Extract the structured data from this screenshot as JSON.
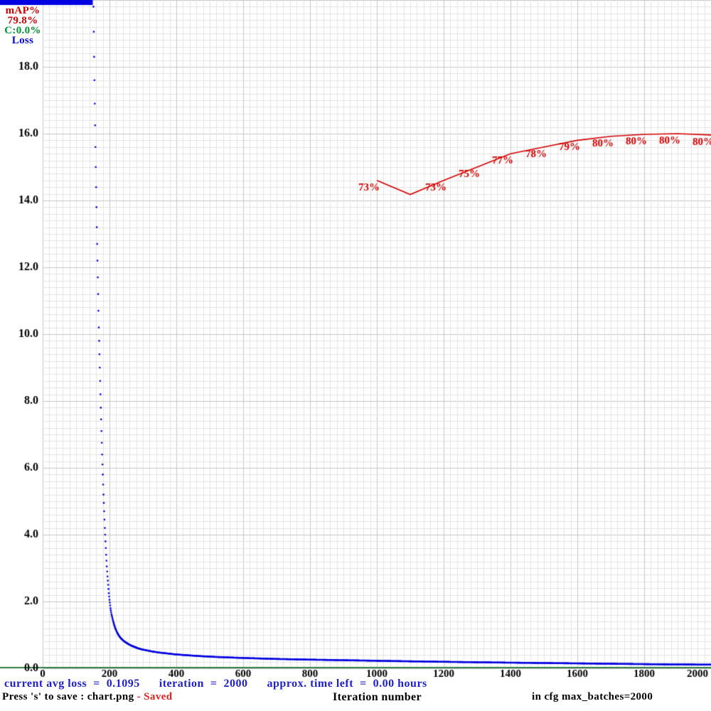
{
  "legend": {
    "map_label": "mAP%",
    "map_value": "79.8%",
    "contrastive_value": "C:0.0%",
    "loss_label": "Loss"
  },
  "footer": {
    "status_line": "current avg loss  =  0.1095      iteration  =  2000      approx. time left  =  0.00 hours",
    "save_hint": "Press 's' to save : chart.png ",
    "saved_flag": "- Saved",
    "x_axis_title": "Iteration number",
    "cfg_note": "in cfg max_batches=2000"
  },
  "colors": {
    "loss": "#0000e0",
    "map": "#d40000",
    "contrastive": "#009432",
    "baseline": "#2f7d46",
    "status_text": "#2121cc",
    "saved_text": "#e02020",
    "grid_minor": "#e3e3e3",
    "grid_major": "#c6c6c6",
    "axis_text": "#000000"
  },
  "chart_data": {
    "type": "line",
    "xlabel": "Iteration number",
    "x_min": 0,
    "x_max": 2000,
    "x_ticks": [
      0,
      200,
      400,
      600,
      800,
      1000,
      1200,
      1400,
      1600,
      1800,
      2000
    ],
    "loss_axis": {
      "min": 0,
      "max": 20,
      "tick_step": 2,
      "tick_format_decimals": 1
    },
    "map_axis": {
      "min": 0,
      "max": 100
    },
    "grid": {
      "divisions": 100,
      "major_every": 10
    },
    "current": {
      "avg_loss": 0.1095,
      "iteration": 2000,
      "map_percent": 79.8,
      "time_left_hours": 0.0,
      "max_batches": 2000
    },
    "loss_clipped_until_iteration": 150,
    "series": [
      {
        "name": "Loss",
        "style": "dots",
        "axis": "loss",
        "points": [
          [
            150,
            21
          ],
          [
            152,
            19.8
          ],
          [
            154,
            18.3
          ],
          [
            156,
            16.9
          ],
          [
            158,
            15.6
          ],
          [
            160,
            14.4
          ],
          [
            162,
            13.2
          ],
          [
            164,
            12.2
          ],
          [
            166,
            11.2
          ],
          [
            168,
            10.2
          ],
          [
            170,
            9.4
          ],
          [
            172,
            8.6
          ],
          [
            174,
            7.8
          ],
          [
            176,
            7.1
          ],
          [
            178,
            6.4
          ],
          [
            180,
            5.8
          ],
          [
            182,
            5.2
          ],
          [
            184,
            4.7
          ],
          [
            186,
            4.2
          ],
          [
            188,
            3.8
          ],
          [
            190,
            3.4
          ],
          [
            192,
            3.05
          ],
          [
            194,
            2.75
          ],
          [
            196,
            2.5
          ],
          [
            198,
            2.25
          ],
          [
            200,
            2.05
          ],
          [
            203,
            1.8
          ],
          [
            206,
            1.62
          ],
          [
            210,
            1.45
          ],
          [
            214,
            1.3
          ],
          [
            218,
            1.18
          ],
          [
            223,
            1.07
          ],
          [
            228,
            0.98
          ],
          [
            234,
            0.9
          ],
          [
            240,
            0.84
          ],
          [
            248,
            0.78
          ],
          [
            256,
            0.73
          ],
          [
            265,
            0.68
          ],
          [
            275,
            0.64
          ],
          [
            285,
            0.6
          ],
          [
            300,
            0.56
          ],
          [
            315,
            0.53
          ],
          [
            330,
            0.5
          ],
          [
            350,
            0.47
          ],
          [
            370,
            0.45
          ],
          [
            395,
            0.42
          ],
          [
            420,
            0.4
          ],
          [
            450,
            0.38
          ],
          [
            480,
            0.36
          ],
          [
            520,
            0.34
          ],
          [
            560,
            0.325
          ],
          [
            600,
            0.31
          ],
          [
            650,
            0.295
          ],
          [
            700,
            0.28
          ],
          [
            750,
            0.27
          ],
          [
            800,
            0.26
          ],
          [
            860,
            0.25
          ],
          [
            920,
            0.24
          ],
          [
            980,
            0.23
          ],
          [
            1040,
            0.22
          ],
          [
            1100,
            0.21
          ],
          [
            1170,
            0.2
          ],
          [
            1240,
            0.19
          ],
          [
            1320,
            0.18
          ],
          [
            1400,
            0.17
          ],
          [
            1490,
            0.16
          ],
          [
            1580,
            0.15
          ],
          [
            1670,
            0.14
          ],
          [
            1760,
            0.13
          ],
          [
            1850,
            0.12
          ],
          [
            1930,
            0.115
          ],
          [
            2000,
            0.11
          ]
        ]
      },
      {
        "name": "mAP%",
        "style": "line",
        "axis": "map",
        "points": [
          [
            1000,
            73
          ],
          [
            1100,
            70.9
          ],
          [
            1200,
            73
          ],
          [
            1300,
            75
          ],
          [
            1400,
            77
          ],
          [
            1500,
            78
          ],
          [
            1600,
            79
          ],
          [
            1700,
            79.6
          ],
          [
            1800,
            79.9
          ],
          [
            1900,
            80
          ],
          [
            2000,
            79.8
          ]
        ],
        "point_labels": [
          "73%",
          "",
          "73%",
          "75%",
          "77%",
          "78%",
          "79%",
          "80%",
          "80%",
          "80%",
          "80%"
        ]
      }
    ]
  }
}
